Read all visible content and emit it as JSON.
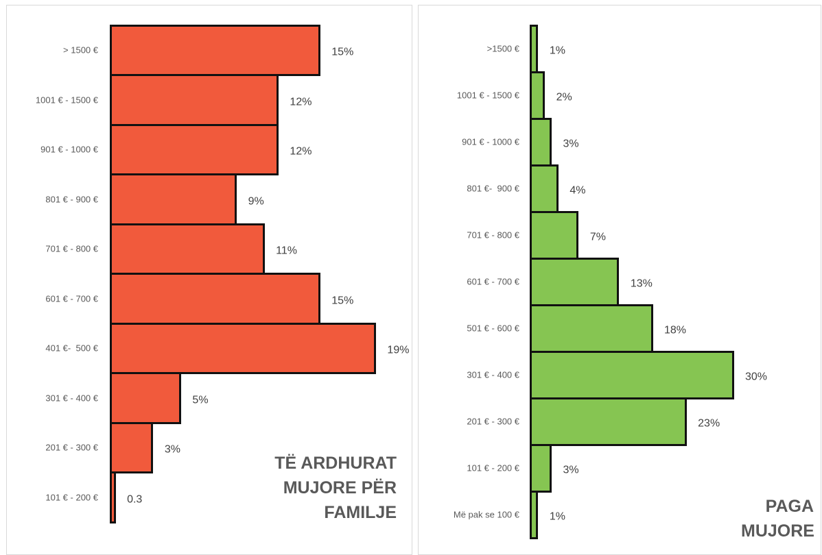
{
  "chart_data": [
    {
      "type": "barh",
      "title": "TË ARDHURAT MUJORE PËR FAMILJE",
      "color": "#f15a3c",
      "categories": [
        "> 1500 €",
        "1001 € - 1500 €",
        "901 € - 1000 €",
        "801 € - 900 €",
        "701 € - 800 €",
        "601 € - 700 €",
        "401 €-  500 €",
        "301 € - 400 €",
        "201 € - 300 €",
        "101 € - 200 €"
      ],
      "values": [
        15,
        12,
        12,
        9,
        11,
        15,
        19,
        5,
        3,
        0.3
      ],
      "value_labels": [
        "15%",
        "12%",
        "12%",
        "9%",
        "11%",
        "15%",
        "19%",
        "5%",
        "3%",
        "0.3"
      ],
      "xlim": [
        0,
        21
      ]
    },
    {
      "type": "barh",
      "title": "PAGA MUJORE",
      "color": "#86c552",
      "categories": [
        ">1500 €",
        "1001 € - 1500 €",
        "901 € - 1000 €",
        "801 €-  900 €",
        "701 € - 800 €",
        "601 € - 700 €",
        "501 € - 600 €",
        "301 € - 400 €",
        "201 € - 300 €",
        "101 € - 200 €",
        "Më pak se 100 €"
      ],
      "values": [
        1,
        2,
        3,
        4,
        7,
        13,
        18,
        30,
        23,
        3,
        1
      ],
      "value_labels": [
        "1%",
        "2%",
        "3%",
        "4%",
        "7%",
        "13%",
        "18%",
        "30%",
        "23%",
        "3%",
        "1%"
      ],
      "xlim": [
        0,
        42
      ]
    }
  ]
}
